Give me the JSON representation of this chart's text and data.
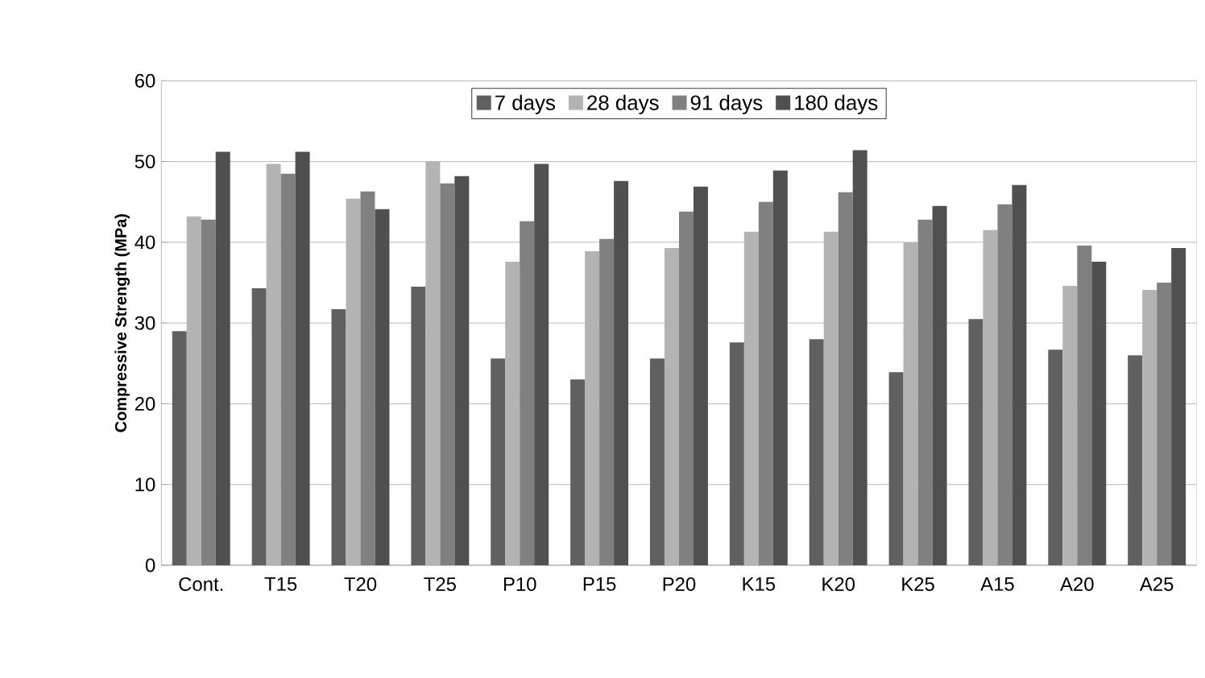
{
  "chart_data": {
    "type": "bar",
    "ylabel": "Compressive Strength (MPa)",
    "categories": [
      "Cont.",
      "T15",
      "T20",
      "T25",
      "P10",
      "P15",
      "P20",
      "K15",
      "K20",
      "K25",
      "A15",
      "A20",
      "A25"
    ],
    "series": [
      {
        "name": "7 days",
        "color": "#606060",
        "values": [
          29.0,
          34.3,
          31.7,
          34.5,
          25.6,
          23.0,
          25.6,
          27.6,
          28.0,
          23.9,
          30.5,
          26.7,
          26.0
        ]
      },
      {
        "name": "28 days",
        "color": "#b3b3b3",
        "values": [
          43.2,
          49.7,
          45.4,
          50.0,
          37.6,
          38.9,
          39.3,
          41.3,
          41.3,
          40.0,
          41.5,
          34.6,
          34.1
        ]
      },
      {
        "name": "91 days",
        "color": "#808080",
        "values": [
          42.8,
          48.5,
          46.3,
          47.3,
          42.6,
          40.4,
          43.8,
          45.0,
          46.2,
          42.8,
          44.7,
          39.6,
          35.0
        ]
      },
      {
        "name": "180 days",
        "color": "#505050",
        "values": [
          51.2,
          51.2,
          44.1,
          48.2,
          49.7,
          47.6,
          46.9,
          48.9,
          51.4,
          44.5,
          47.1,
          37.6,
          39.3
        ]
      }
    ],
    "ylim": [
      0,
      60
    ],
    "yticks": [
      0,
      10,
      20,
      30,
      40,
      50,
      60
    ],
    "grid": "y",
    "legend": "top"
  }
}
